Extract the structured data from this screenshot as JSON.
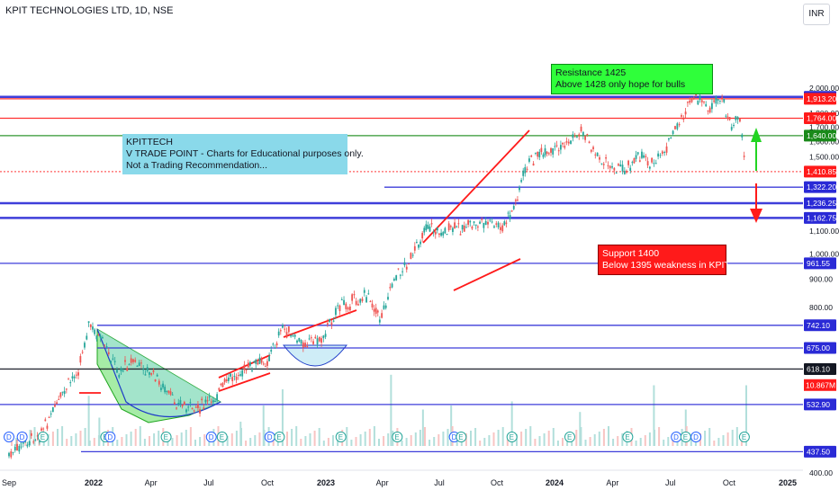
{
  "header": {
    "title": "KPIT TECHNOLOGIES LTD, 1D, NSE",
    "currency": "INR"
  },
  "notes": {
    "blue": [
      "KPITTECH",
      "V TRADE POINT - Charts for Educational purposes only.",
      "Not a Trading Recommendation..."
    ],
    "green": [
      "Resistance 1425",
      "Above 1428 only hope for bulls"
    ],
    "red": [
      "Support 1400",
      "Below 1395 weakness in KPIT"
    ]
  },
  "colors": {
    "up": "#26a69a",
    "down": "#ef5350",
    "level_blue": "#2a2ad6",
    "level_red": "#ff1a1a",
    "level_green": "#1a8a1a",
    "volume": "#b2dfdb"
  },
  "chart_data": {
    "type": "line",
    "scale": "log",
    "xlabel": "",
    "ylabel": "",
    "x_ticks": [
      "Sep",
      "2022",
      "Apr",
      "Jul",
      "Oct",
      "2023",
      "Apr",
      "Jul",
      "Oct",
      "2024",
      "Apr",
      "Jul",
      "Oct",
      "2025"
    ],
    "y_ticks": [
      "2,000.00",
      "1,800.00",
      "1,700.00",
      "1,600.00",
      "1,500.00",
      "1,100.00",
      "1,000.00",
      "900.00",
      "800.00",
      "400.00"
    ],
    "ylim": [
      400,
      2050
    ],
    "series": [
      {
        "values": [
          {
            "d": "2021-09-01",
            "v": 430
          },
          {
            "d": "2021-10-15",
            "v": 470
          },
          {
            "d": "2021-11-20",
            "v": 560
          },
          {
            "d": "2021-12-10",
            "v": 620
          },
          {
            "d": "2021-12-25",
            "v": 742
          },
          {
            "d": "2022-01-15",
            "v": 690
          },
          {
            "d": "2022-02-10",
            "v": 610
          },
          {
            "d": "2022-03-01",
            "v": 640
          },
          {
            "d": "2022-04-05",
            "v": 600
          },
          {
            "d": "2022-05-05",
            "v": 545
          },
          {
            "d": "2022-06-05",
            "v": 520
          },
          {
            "d": "2022-07-05",
            "v": 540
          },
          {
            "d": "2022-08-01",
            "v": 590
          },
          {
            "d": "2022-09-01",
            "v": 620
          },
          {
            "d": "2022-10-01",
            "v": 640
          },
          {
            "d": "2022-10-25",
            "v": 735
          },
          {
            "d": "2022-11-20",
            "v": 690
          },
          {
            "d": "2022-12-25",
            "v": 700
          },
          {
            "d": "2023-01-20",
            "v": 800
          },
          {
            "d": "2023-03-10",
            "v": 840
          },
          {
            "d": "2023-03-28",
            "v": 760
          },
          {
            "d": "2023-04-20",
            "v": 900
          },
          {
            "d": "2023-05-20",
            "v": 990
          },
          {
            "d": "2023-06-10",
            "v": 1130
          },
          {
            "d": "2023-07-01",
            "v": 1090
          },
          {
            "d": "2023-08-10",
            "v": 1120
          },
          {
            "d": "2023-09-10",
            "v": 1140
          },
          {
            "d": "2023-10-10",
            "v": 1110
          },
          {
            "d": "2023-10-28",
            "v": 1210
          },
          {
            "d": "2023-11-15",
            "v": 1420
          },
          {
            "d": "2023-12-05",
            "v": 1530
          },
          {
            "d": "2023-12-20",
            "v": 1500
          },
          {
            "d": "2024-01-20",
            "v": 1590
          },
          {
            "d": "2024-02-15",
            "v": 1680
          },
          {
            "d": "2024-03-05",
            "v": 1520
          },
          {
            "d": "2024-03-25",
            "v": 1450
          },
          {
            "d": "2024-04-20",
            "v": 1430
          },
          {
            "d": "2024-05-20",
            "v": 1520
          },
          {
            "d": "2024-06-05",
            "v": 1440
          },
          {
            "d": "2024-06-25",
            "v": 1560
          },
          {
            "d": "2024-07-15",
            "v": 1740
          },
          {
            "d": "2024-07-28",
            "v": 1850
          },
          {
            "d": "2024-08-10",
            "v": 1920
          },
          {
            "d": "2024-09-01",
            "v": 1830
          },
          {
            "d": "2024-09-20",
            "v": 1915
          },
          {
            "d": "2024-10-05",
            "v": 1700
          },
          {
            "d": "2024-10-18",
            "v": 1780
          },
          {
            "d": "2024-10-28",
            "v": 1410
          }
        ]
      }
    ],
    "volume": [
      {
        "d": "2021-12-25",
        "v": 0.62
      },
      {
        "d": "2022-01-10",
        "v": 0.35
      },
      {
        "d": "2022-08-20",
        "v": 0.3
      },
      {
        "d": "2022-09-25",
        "v": 0.5
      },
      {
        "d": "2022-10-25",
        "v": 0.7
      },
      {
        "d": "2023-04-15",
        "v": 0.88
      },
      {
        "d": "2023-06-05",
        "v": 0.45
      },
      {
        "d": "2023-07-20",
        "v": 0.5
      },
      {
        "d": "2023-10-25",
        "v": 0.55
      },
      {
        "d": "2024-02-10",
        "v": 0.42
      },
      {
        "d": "2024-06-05",
        "v": 0.75
      },
      {
        "d": "2024-07-25",
        "v": 0.45
      },
      {
        "d": "2024-10-28",
        "v": 0.75
      }
    ],
    "current_volume_label": "10.867M",
    "levels": [
      {
        "label": "1,928.70",
        "price": 1928.7,
        "kind": "blue",
        "line": true
      },
      {
        "label": "1,913.20",
        "price": 1913.2,
        "kind": "red",
        "line": true
      },
      {
        "label": "1,764.00",
        "price": 1764.0,
        "kind": "red",
        "line": true
      },
      {
        "label": "1,640.00",
        "price": 1640.0,
        "kind": "green",
        "line": true
      },
      {
        "label": "1,410.85",
        "price": 1410.85,
        "kind": "redlast",
        "line": true
      },
      {
        "label": "1,322.20",
        "price": 1322.2,
        "kind": "blue",
        "line": true
      },
      {
        "label": "1,236.25",
        "price": 1236.25,
        "kind": "blue",
        "line": true
      },
      {
        "label": "1,162.75",
        "price": 1162.75,
        "kind": "blue",
        "line": true
      },
      {
        "label": "961.55",
        "price": 961.55,
        "kind": "blue",
        "line": true
      },
      {
        "label": "742.10",
        "price": 742.1,
        "kind": "blue",
        "line": true
      },
      {
        "label": "675.00",
        "price": 675.0,
        "kind": "blue",
        "line": true
      },
      {
        "label": "618.10",
        "price": 618.1,
        "kind": "dark",
        "line": true
      },
      {
        "label": "532.90",
        "price": 532.9,
        "kind": "blue",
        "line": true
      },
      {
        "label": "437.50",
        "price": 437.5,
        "kind": "blue",
        "line": true
      }
    ],
    "events": [
      {
        "d": "2021-09-01",
        "t": "D"
      },
      {
        "d": "2021-09-20",
        "t": "D"
      },
      {
        "d": "2021-10-20",
        "t": "E"
      },
      {
        "d": "2022-01-20",
        "t": "E"
      },
      {
        "d": "2022-01-27",
        "t": "D"
      },
      {
        "d": "2022-04-25",
        "t": "E"
      },
      {
        "d": "2022-07-05",
        "t": "D"
      },
      {
        "d": "2022-07-22",
        "t": "E"
      },
      {
        "d": "2022-10-05",
        "t": "D"
      },
      {
        "d": "2022-10-20",
        "t": "E"
      },
      {
        "d": "2023-01-25",
        "t": "E"
      },
      {
        "d": "2023-04-25",
        "t": "E"
      },
      {
        "d": "2023-07-25",
        "t": "D"
      },
      {
        "d": "2023-08-05",
        "t": "E"
      },
      {
        "d": "2023-10-25",
        "t": "E"
      },
      {
        "d": "2024-01-25",
        "t": "E"
      },
      {
        "d": "2024-04-25",
        "t": "E"
      },
      {
        "d": "2024-07-10",
        "t": "D"
      },
      {
        "d": "2024-07-25",
        "t": "E"
      },
      {
        "d": "2024-08-10",
        "t": "D"
      },
      {
        "d": "2024-10-25",
        "t": "E"
      }
    ]
  }
}
